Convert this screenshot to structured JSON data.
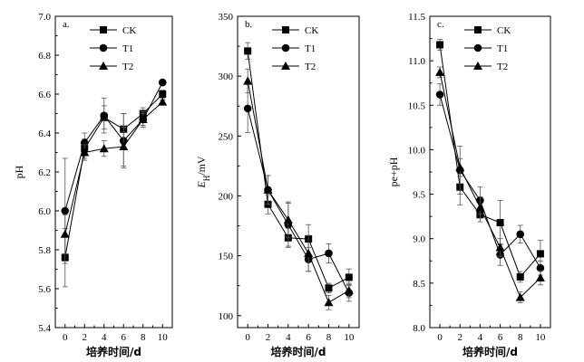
{
  "chart_data": [
    {
      "type": "line",
      "panel_label": "a.",
      "x": [
        0,
        2,
        4,
        6,
        8,
        10
      ],
      "xticks": [
        "0",
        "2",
        "4",
        "6",
        "8",
        "10"
      ],
      "xlabel": "培养时间/d",
      "ylabel": "pH",
      "ylim": [
        5.4,
        7.0
      ],
      "yticks": [
        "5.4",
        "5.6",
        "5.8",
        "6.0",
        "6.2",
        "6.4",
        "6.6",
        "6.8",
        "7.0"
      ],
      "legend_position": "top-right",
      "series": [
        {
          "name": "CK",
          "marker": "square",
          "values": [
            5.76,
            6.32,
            6.48,
            6.42,
            6.5,
            6.6
          ],
          "errors": [
            0.15,
            0.05,
            0.06,
            0.08,
            0.03,
            0.02
          ]
        },
        {
          "name": "T1",
          "marker": "circle",
          "values": [
            6.0,
            6.35,
            6.49,
            6.36,
            6.47,
            6.66
          ],
          "errors": [
            0.27,
            0.05,
            0.09,
            0.14,
            0.04,
            0.01
          ]
        },
        {
          "name": "T2",
          "marker": "triangle",
          "values": [
            5.88,
            6.3,
            6.32,
            6.33,
            6.47,
            6.56
          ],
          "errors": [
            0.1,
            0.04,
            0.04,
            0.1,
            0.03,
            0.01
          ]
        }
      ]
    },
    {
      "type": "line",
      "panel_label": "b.",
      "x": [
        0,
        2,
        4,
        6,
        8,
        10
      ],
      "xticks": [
        "0",
        "2",
        "4",
        "6",
        "8",
        "10"
      ],
      "xlabel": "培养时间/d",
      "ylabel": "E",
      "ylabel_sub": "H",
      "ylabel_suffix": "/mV",
      "ylim": [
        90,
        350
      ],
      "ytick_values": [
        100,
        150,
        200,
        250,
        300,
        350
      ],
      "yticks": [
        "100",
        "150",
        "200",
        "250",
        "300",
        "350"
      ],
      "legend_position": "top-right",
      "series": [
        {
          "name": "CK",
          "marker": "square",
          "values": [
            321,
            193,
            165,
            164,
            123,
            132
          ],
          "errors": [
            7,
            8,
            8,
            12,
            4,
            7
          ]
        },
        {
          "name": "T1",
          "marker": "circle",
          "values": [
            273,
            205,
            176,
            147,
            152,
            119
          ],
          "errors": [
            20,
            12,
            18,
            10,
            8,
            7
          ]
        },
        {
          "name": "T2",
          "marker": "triangle",
          "values": [
            296,
            205,
            180,
            152,
            111,
            121
          ],
          "errors": [
            10,
            12,
            15,
            15,
            6,
            6
          ]
        }
      ]
    },
    {
      "type": "line",
      "panel_label": "c.",
      "x": [
        0,
        2,
        4,
        6,
        8,
        10
      ],
      "xticks": [
        "0",
        "2",
        "4",
        "6",
        "8",
        "10"
      ],
      "xlabel": "培养时间/d",
      "ylabel": "pe+pH",
      "ylim": [
        8.0,
        11.5
      ],
      "yticks": [
        "8.0",
        "8.5",
        "9.0",
        "9.5",
        "10.0",
        "10.5",
        "11.0",
        "11.5"
      ],
      "legend_position": "top-right",
      "series": [
        {
          "name": "CK",
          "marker": "square",
          "values": [
            11.18,
            9.58,
            9.27,
            9.18,
            8.57,
            8.83
          ],
          "errors": [
            0.06,
            0.2,
            0.08,
            0.25,
            0.06,
            0.15
          ]
        },
        {
          "name": "T1",
          "marker": "circle",
          "values": [
            10.62,
            9.77,
            9.43,
            8.82,
            9.05,
            8.67
          ],
          "errors": [
            0.12,
            0.27,
            0.15,
            0.12,
            0.1,
            0.08
          ]
        },
        {
          "name": "T2",
          "marker": "triangle",
          "values": [
            10.87,
            9.8,
            9.35,
            8.9,
            8.34,
            8.56
          ],
          "errors": [
            0.06,
            0.1,
            0.12,
            0.1,
            0.06,
            0.08
          ]
        }
      ]
    }
  ]
}
